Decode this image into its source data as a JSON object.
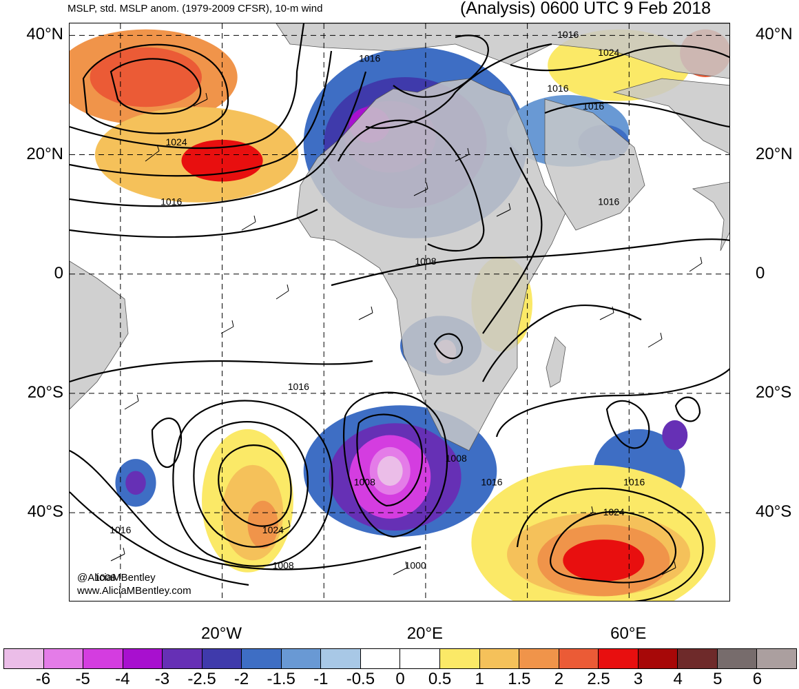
{
  "header": {
    "left_title": "MSLP, std. MSLP anom. (1979-2009 CFSR), 10-m wind",
    "right_title": "(Analysis) 0600 UTC 9 Feb 2018"
  },
  "map": {
    "extent": {
      "lon_min": -50,
      "lon_max": 80,
      "lat_min": -55,
      "lat_max": 42
    },
    "lat_lines": [
      40,
      20,
      0,
      -20,
      -40
    ],
    "lon_lines": [
      -40,
      -20,
      0,
      20,
      40,
      60
    ],
    "lat_labels": [
      {
        "lat": 40,
        "text": "40°N"
      },
      {
        "lat": 20,
        "text": "20°N"
      },
      {
        "lat": 0,
        "text": "0"
      },
      {
        "lat": -20,
        "text": "20°S"
      },
      {
        "lat": -40,
        "text": "40°S"
      }
    ],
    "lon_labels": [
      {
        "lon": -20,
        "text": "20°W"
      },
      {
        "lon": 20,
        "text": "20°E"
      },
      {
        "lon": 60,
        "text": "60°E"
      }
    ],
    "land_color": "#c8c8c8",
    "anomaly_blobs": [
      {
        "lon": -35,
        "lat": 33,
        "rx": 18,
        "ry": 8,
        "level": 1.5
      },
      {
        "lon": -35,
        "lat": 33,
        "rx": 11,
        "ry": 5,
        "level": 2.0
      },
      {
        "lon": -25,
        "lat": 20,
        "rx": 20,
        "ry": 8,
        "level": 1.0
      },
      {
        "lon": -20,
        "lat": 19,
        "rx": 8,
        "ry": 3.5,
        "level": 2.5
      },
      {
        "lon": 58,
        "lat": 35,
        "rx": 14,
        "ry": 6,
        "level": 0.5
      },
      {
        "lon": 75,
        "lat": 37,
        "rx": 5,
        "ry": 4,
        "level": 2.0
      },
      {
        "lon": 18,
        "lat": 22,
        "rx": 22,
        "ry": 16,
        "level": -1.0
      },
      {
        "lon": 16,
        "lat": 22,
        "rx": 16,
        "ry": 11,
        "level": -1.5
      },
      {
        "lon": 13,
        "lat": 23,
        "rx": 9,
        "ry": 6,
        "level": -2.0
      },
      {
        "lon": 9,
        "lat": 25,
        "rx": 4,
        "ry": 3,
        "level": -2.5
      },
      {
        "lon": 48,
        "lat": 24,
        "rx": 12,
        "ry": 6,
        "level": -0.5
      },
      {
        "lon": 55,
        "lat": 22,
        "rx": 5,
        "ry": 3,
        "level": -1.0
      },
      {
        "lon": 23,
        "lat": -12,
        "rx": 8,
        "ry": 5,
        "level": -1.0
      },
      {
        "lon": 24,
        "lat": -13,
        "rx": 2,
        "ry": 2,
        "level": -5.0
      },
      {
        "lon": 15,
        "lat": -33,
        "rx": 19,
        "ry": 11,
        "level": -1.0
      },
      {
        "lon": 14,
        "lat": -34,
        "rx": 13,
        "ry": 9,
        "level": -2.0
      },
      {
        "lon": 13,
        "lat": -34,
        "rx": 8,
        "ry": 7,
        "level": -3.0
      },
      {
        "lon": 13,
        "lat": -33,
        "rx": 4,
        "ry": 4,
        "level": -4.0
      },
      {
        "lon": 13,
        "lat": -33,
        "rx": 2.5,
        "ry": 2.5,
        "level": -5.0
      },
      {
        "lon": 62,
        "lat": -33,
        "rx": 9,
        "ry": 7,
        "level": -1.0
      },
      {
        "lon": 62,
        "lat": -36,
        "rx": 3.5,
        "ry": 3,
        "level": -2.0
      },
      {
        "lon": 69,
        "lat": -27,
        "rx": 2.5,
        "ry": 2.5,
        "level": -2.0
      },
      {
        "lon": -37,
        "lat": -35,
        "rx": 4,
        "ry": 4,
        "level": -1.0
      },
      {
        "lon": -37,
        "lat": -35,
        "rx": 2,
        "ry": 2,
        "level": -2.0
      },
      {
        "lon": -15,
        "lat": -38,
        "rx": 9,
        "ry": 12,
        "level": 0.5
      },
      {
        "lon": -14,
        "lat": -40,
        "rx": 6,
        "ry": 8,
        "level": 1.0
      },
      {
        "lon": -12,
        "lat": -42,
        "rx": 3,
        "ry": 4,
        "level": 1.5
      },
      {
        "lon": 53,
        "lat": -45,
        "rx": 24,
        "ry": 13,
        "level": 0.5
      },
      {
        "lon": 54,
        "lat": -47,
        "rx": 18,
        "ry": 7,
        "level": 1.0
      },
      {
        "lon": 55,
        "lat": -48,
        "rx": 13,
        "ry": 6,
        "level": 1.5
      },
      {
        "lon": 55,
        "lat": -48,
        "rx": 8,
        "ry": 3.5,
        "level": 2.5
      },
      {
        "lon": 35,
        "lat": -5,
        "rx": 6,
        "ry": 8,
        "level": 0.5
      }
    ],
    "isobar_labels": [
      {
        "lon": -29,
        "lat": 22,
        "text": "1024"
      },
      {
        "lon": -30,
        "lat": 12,
        "text": "1016"
      },
      {
        "lon": -5,
        "lat": -19,
        "text": "1016"
      },
      {
        "lon": -40,
        "lat": -43,
        "text": "1016"
      },
      {
        "lon": -43,
        "lat": -51,
        "text": "1008"
      },
      {
        "lon": -8,
        "lat": -49,
        "text": "1008"
      },
      {
        "lon": 9,
        "lat": 36,
        "text": "1016"
      },
      {
        "lon": 48,
        "lat": 40,
        "text": "1016"
      },
      {
        "lon": 56,
        "lat": 37,
        "text": "1024"
      },
      {
        "lon": 46,
        "lat": 31,
        "text": "1016"
      },
      {
        "lon": 53,
        "lat": 28,
        "text": "1016"
      },
      {
        "lon": 56,
        "lat": 12,
        "text": "1016"
      },
      {
        "lon": 20,
        "lat": 2,
        "text": "1008"
      },
      {
        "lon": -10,
        "lat": -43,
        "text": "1024"
      },
      {
        "lon": 8,
        "lat": -35,
        "text": "1008"
      },
      {
        "lon": 26,
        "lat": -31,
        "text": "1008"
      },
      {
        "lon": 33,
        "lat": -35,
        "text": "1016"
      },
      {
        "lon": 18,
        "lat": -49,
        "text": "1000"
      },
      {
        "lon": 57,
        "lat": -40,
        "text": "1024"
      },
      {
        "lon": 61,
        "lat": -35,
        "text": "1016"
      }
    ]
  },
  "credit": {
    "handle": "@AliciaMBentley",
    "site": "www.AliciaMBentley.com"
  },
  "colorbar": {
    "colors": [
      "#ebbde8",
      "#e47ce8",
      "#d43de0",
      "#a810cf",
      "#6630b5",
      "#3f3aab",
      "#3e6ec4",
      "#6999d4",
      "#a8c8e6",
      "#ffffff",
      "#ffffff",
      "#fbe967",
      "#f5c15a",
      "#f0944a",
      "#eb5b36",
      "#e80f0f",
      "#a70808",
      "#6e2a2a",
      "#776c6c",
      "#ab9f9f"
    ],
    "ticks": [
      "-6",
      "-5",
      "-4",
      "-3",
      "-2.5",
      "-2",
      "-1.5",
      "-1",
      "-0.5",
      "0",
      "0.5",
      "1",
      "1.5",
      "2",
      "2.5",
      "3",
      "4",
      "5",
      "6"
    ]
  }
}
